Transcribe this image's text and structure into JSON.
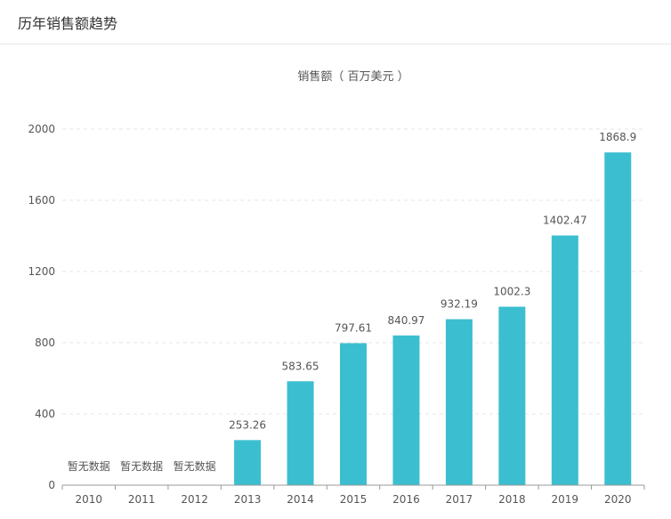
{
  "page": {
    "title": "历年销售额趋势"
  },
  "chart_data": {
    "type": "bar",
    "categories": [
      "2010",
      "2011",
      "2012",
      "2013",
      "2014",
      "2015",
      "2016",
      "2017",
      "2018",
      "2019",
      "2020"
    ],
    "values": [
      null,
      null,
      null,
      253.26,
      583.65,
      797.61,
      840.97,
      932.19,
      1002.3,
      1402.47,
      1868.9
    ],
    "value_labels": [
      "暂无数据",
      "暂无数据",
      "暂无数据",
      "253.26",
      "583.65",
      "797.61",
      "840.97",
      "932.19",
      "1002.3",
      "1402.47",
      "1868.9"
    ],
    "ylabel": "销售额（ 百万美元 ）",
    "xlabel": "",
    "ylim": [
      0,
      2000
    ],
    "yticks": [
      0,
      400,
      800,
      1200,
      1600,
      2000
    ],
    "grid": true,
    "legend": "none",
    "bar_color": "#3bbfd0",
    "grid_color": "#e6e6e6",
    "axis_color": "#999999"
  }
}
